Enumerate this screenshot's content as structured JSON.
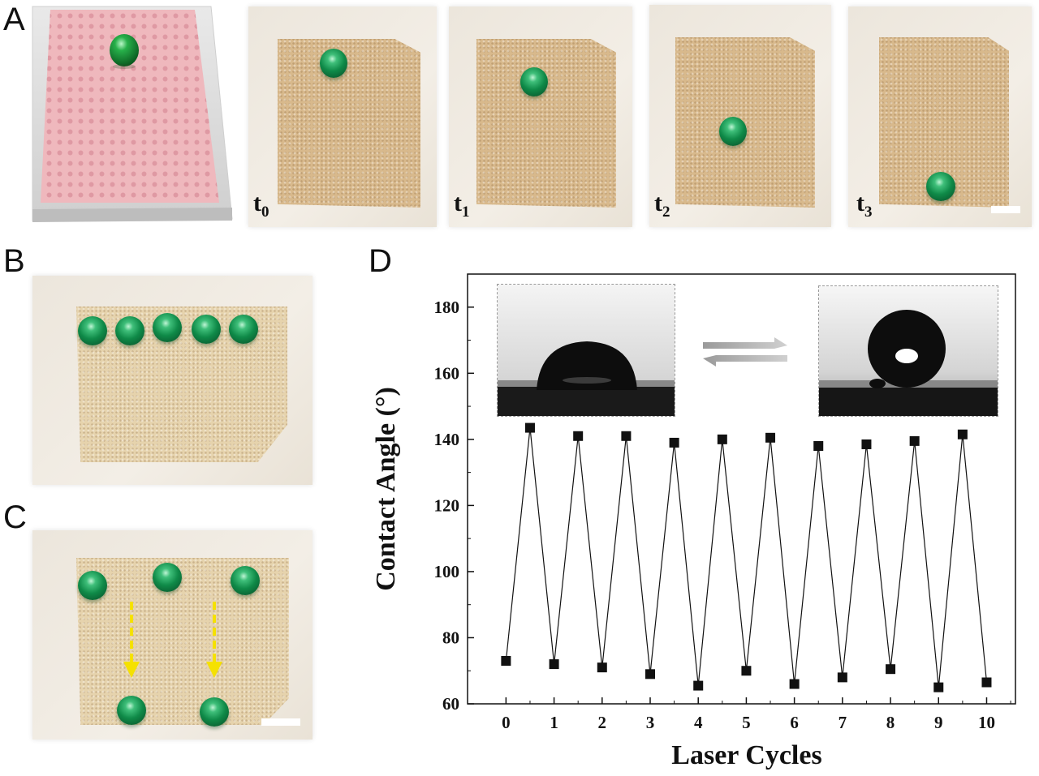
{
  "panels": {
    "A": {
      "letter": "A",
      "time_labels": [
        {
          "base": "t",
          "sub": "0"
        },
        {
          "base": "t",
          "sub": "1"
        },
        {
          "base": "t",
          "sub": "2"
        },
        {
          "base": "t",
          "sub": "3"
        }
      ]
    },
    "B": {
      "letter": "B"
    },
    "C": {
      "letter": "C"
    },
    "D": {
      "letter": "D"
    }
  },
  "chart_data": {
    "type": "line",
    "xlabel": "Laser Cycles",
    "ylabel": "Contact Angle (°)",
    "xlim": [
      -0.8,
      10.6
    ],
    "ylim": [
      60,
      190
    ],
    "xticks": [
      0,
      1,
      2,
      3,
      4,
      5,
      6,
      7,
      8,
      9,
      10
    ],
    "yticks": [
      60,
      80,
      100,
      120,
      140,
      160,
      180
    ],
    "series": [
      {
        "x": [
          0,
          0.5,
          1,
          1.5,
          2,
          2.5,
          3,
          3.5,
          4,
          4.5,
          5,
          5.5,
          6,
          6.5,
          7,
          7.5,
          8,
          8.5,
          9,
          9.5,
          10
        ],
        "y": [
          73,
          143.5,
          72,
          141,
          71,
          141,
          69,
          139,
          65.5,
          140,
          70,
          140.5,
          66,
          138,
          68,
          138.5,
          70.5,
          139.5,
          65,
          141.5,
          66.5
        ]
      }
    ],
    "marker": "square",
    "color": "#111111"
  }
}
